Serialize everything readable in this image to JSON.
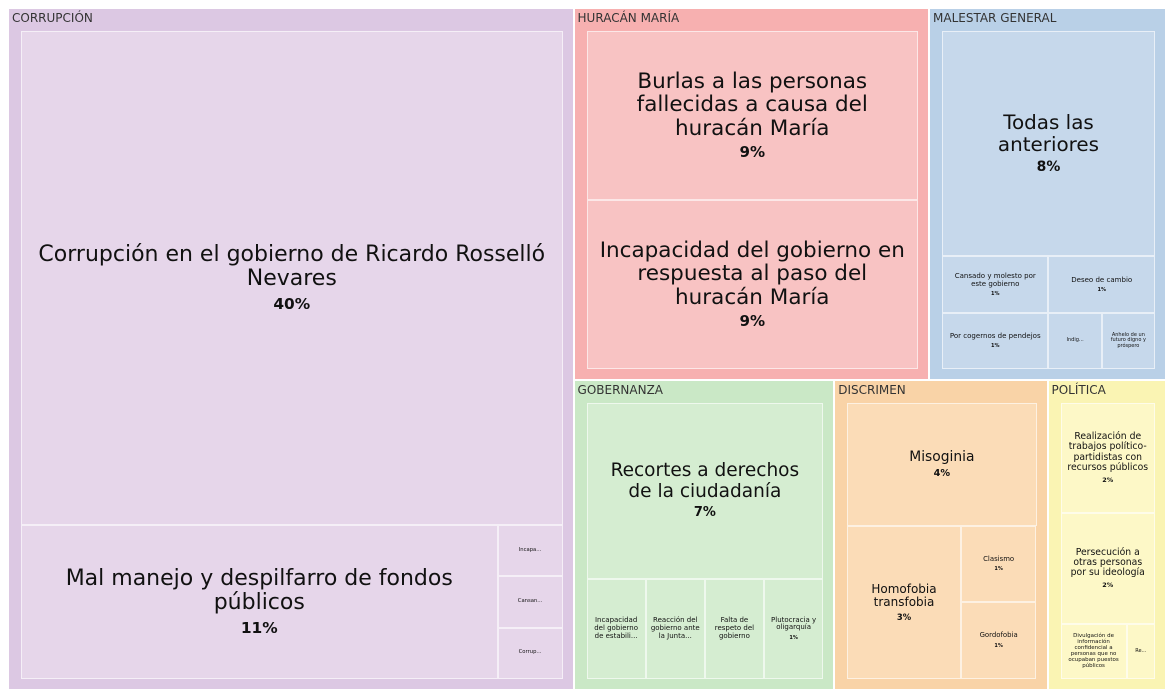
{
  "chart_data": {
    "type": "treemap",
    "groups": [
      {
        "name": "CORRUPCIÓN",
        "color": "#dcc8e3",
        "tile_color": "#e6d6ea",
        "children": [
          {
            "name": "Corrupción en el gobierno de Ricardo Rosselló Nevares",
            "value": 40,
            "value_label": "40%"
          },
          {
            "name": "Mal manejo y despilfarro de fondos públicos",
            "value": 11,
            "value_label": "11%"
          },
          {
            "name": "Incapa...",
            "value": 0.5
          },
          {
            "name": "Cansan...",
            "value": 0.5
          },
          {
            "name": "Corrup...",
            "value": 0.5
          }
        ]
      },
      {
        "name": "HURACÁN MARÍA",
        "color": "#f7b0b0",
        "tile_color": "#f8c3c3",
        "children": [
          {
            "name": "Burlas a las personas fallecidas a causa del huracán María",
            "value": 9,
            "value_label": "9%"
          },
          {
            "name": "Incapacidad del gobierno en respuesta al paso del huracán María",
            "value": 9,
            "value_label": "9%"
          }
        ]
      },
      {
        "name": "MALESTAR GENERAL",
        "color": "#b9d0e7",
        "tile_color": "#c6d8eb",
        "children": [
          {
            "name": "Todas las anteriores",
            "value": 8,
            "value_label": "8%"
          },
          {
            "name": "Cansado y molesto por este gobierno",
            "value": 1,
            "value_label": "1%"
          },
          {
            "name": "Por cogernos de pendejos",
            "value": 1,
            "value_label": "1%"
          },
          {
            "name": "Deseo de cambio",
            "value": 1,
            "value_label": "1%"
          },
          {
            "name": "Indig...",
            "value": 0.5
          },
          {
            "name": "Anhelo de un futuro digno y próspero",
            "value": 0.5
          }
        ]
      },
      {
        "name": "GOBERNANZA",
        "color": "#cae8c6",
        "tile_color": "#d5edd1",
        "children": [
          {
            "name": "Recortes a derechos de la ciudadanía",
            "value": 7,
            "value_label": "7%"
          },
          {
            "name": "Incapacidad del gobierno de estabili...",
            "value": 1
          },
          {
            "name": "Reacción del gobierno ante la Junta...",
            "value": 1
          },
          {
            "name": "Falta de respeto del gobierno",
            "value": 1
          },
          {
            "name": "Plutocracia y oligarquía",
            "value": 1,
            "value_label": "1%"
          }
        ]
      },
      {
        "name": "DISCRIMEN",
        "color": "#f9d3a7",
        "tile_color": "#fbdcb7",
        "children": [
          {
            "name": "Misoginia",
            "value": 4,
            "value_label": "4%"
          },
          {
            "name": "Homofobia transfobia",
            "value": 3,
            "value_label": "3%"
          },
          {
            "name": "Clasismo",
            "value": 1,
            "value_label": "1%"
          },
          {
            "name": "Gordofobia",
            "value": 1,
            "value_label": "1%"
          }
        ]
      },
      {
        "name": "POLÍTICA",
        "color": "#faf4b3",
        "tile_color": "#fdf8c7",
        "children": [
          {
            "name": "Realización de trabajos político-partidistas con recursos públicos",
            "value": 2,
            "value_label": "2%"
          },
          {
            "name": "Persecución a otras personas por su ideología",
            "value": 2,
            "value_label": "2%"
          },
          {
            "name": "Divulgación de información confidencial a personas que no ocupaban puestos públicos",
            "value": 0.7
          },
          {
            "name": "Re...",
            "value": 0.3
          }
        ]
      }
    ]
  }
}
